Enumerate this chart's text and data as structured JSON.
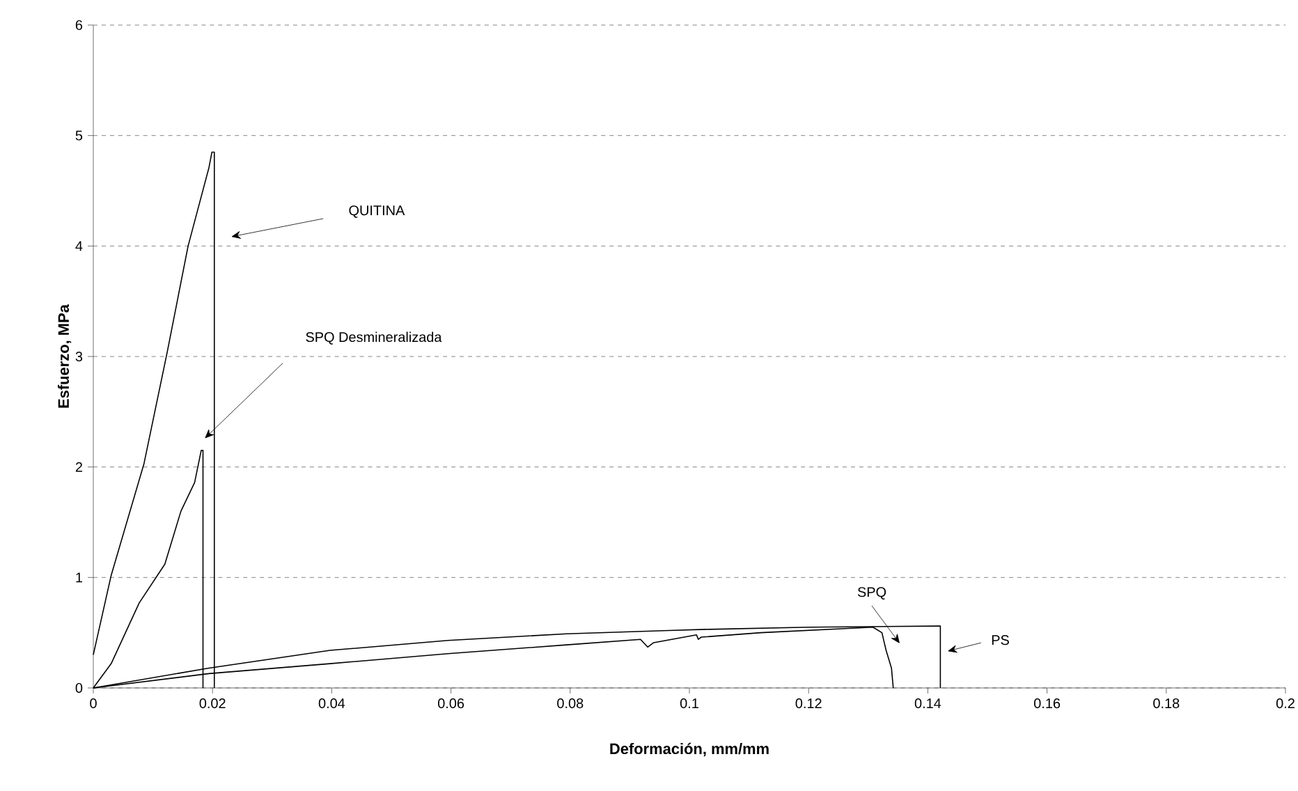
{
  "chart_data": {
    "type": "line",
    "xlabel": "Deformación, mm/mm",
    "ylabel": "Esfuerzo, MPa",
    "xlim": [
      0,
      0.2
    ],
    "ylim": [
      0,
      6
    ],
    "xticks": [
      0,
      0.02,
      0.04,
      0.06,
      0.08,
      0.1,
      0.12,
      0.14,
      0.16,
      0.18,
      0.2
    ],
    "yticks": [
      0,
      1,
      2,
      3,
      4,
      5,
      6
    ],
    "grid": "y",
    "marker": "none",
    "line_style": "solid",
    "series": [
      {
        "color": "#000000",
        "x": [
          0,
          0.003,
          0.0085,
          0.0124,
          0.0159,
          0.0194,
          0.0199,
          0.0203,
          0.0203
        ],
        "values": [
          0.3,
          1.02,
          2.03,
          3.04,
          4.0,
          4.71,
          4.85,
          4.85,
          0
        ]
      },
      {
        "color": "#000000",
        "x": [
          0,
          0.003,
          0.0077,
          0.012,
          0.0147,
          0.017,
          0.0181,
          0.0184,
          0.0184
        ],
        "values": [
          0,
          0.22,
          0.77,
          1.12,
          1.6,
          1.86,
          2.15,
          2.15,
          0
        ]
      },
      {
        "color": "#000000",
        "x": [
          0,
          0.0194,
          0.0397,
          0.0595,
          0.0794,
          0.0965,
          0.1027,
          0.12,
          0.1417,
          0.1421,
          0.1421
        ],
        "values": [
          0,
          0.18,
          0.34,
          0.43,
          0.49,
          0.52,
          0.53,
          0.55,
          0.56,
          0.56,
          0
        ]
      },
      {
        "color": "#000000",
        "x": [
          0,
          0.0194,
          0.0397,
          0.0595,
          0.0794,
          0.0918,
          0.093,
          0.094,
          0.1012,
          0.1015,
          0.102,
          0.112,
          0.1308,
          0.1323,
          0.133,
          0.1339,
          0.1342
        ],
        "values": [
          0,
          0.13,
          0.22,
          0.31,
          0.39,
          0.44,
          0.37,
          0.41,
          0.48,
          0.44,
          0.46,
          0.5,
          0.55,
          0.5,
          0.34,
          0.18,
          0
        ]
      }
    ],
    "annotations": [
      "QUITINA",
      "SPQ Desmineralizada",
      "SPQ",
      "PS"
    ]
  }
}
